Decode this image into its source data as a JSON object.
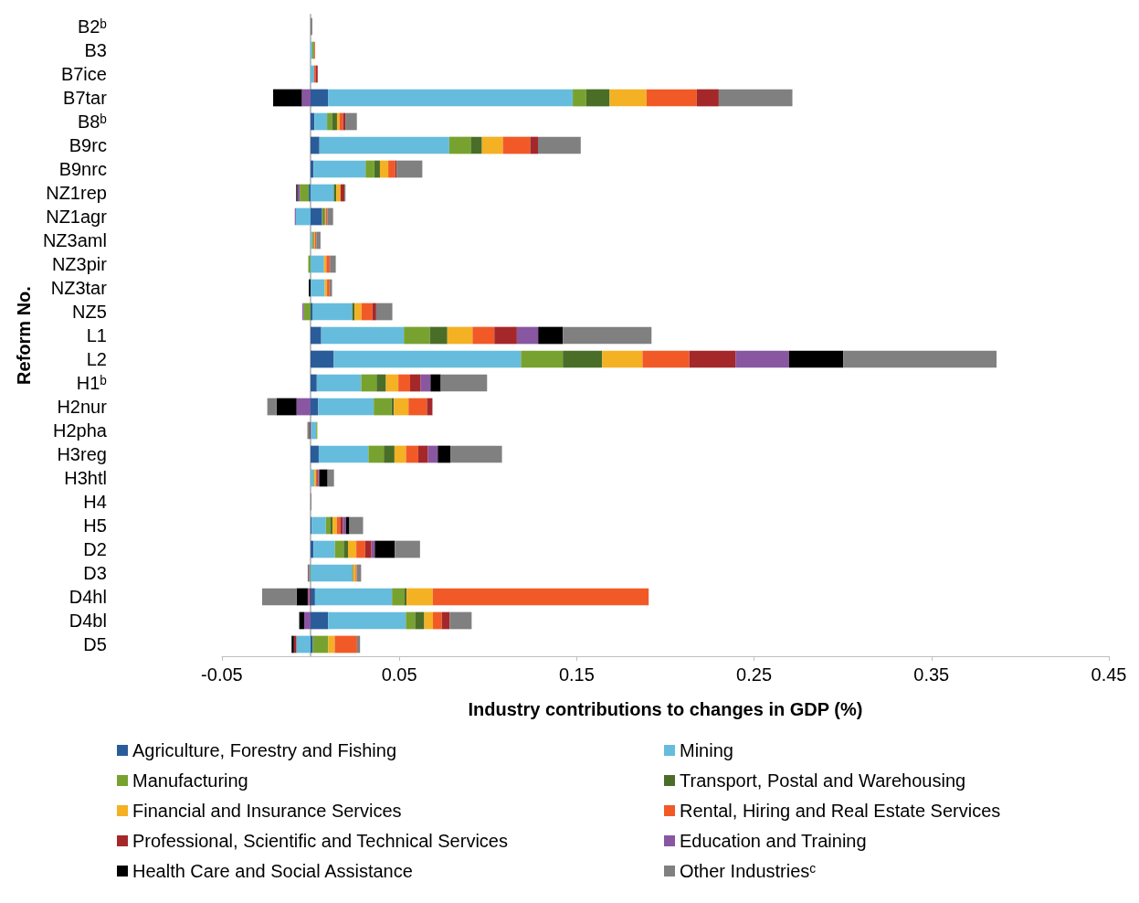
{
  "chart_data": {
    "type": "bar",
    "orientation": "horizontal",
    "stacked": true,
    "xlabel": "Industry contributions to changes in GDP (%)",
    "ylabel": "Reform No.",
    "categories": [
      "B2ᵇ",
      "B3",
      "B7ice",
      "B7tar",
      "B8ᵇ",
      "B9rc",
      "B9nrc",
      "NZ1rep",
      "NZ1agr",
      "NZ3aml",
      "NZ3pir",
      "NZ3tar",
      "NZ5",
      "L1",
      "L2",
      "H1ᵇ",
      "H2nur",
      "H2pha",
      "H3reg",
      "H3htl",
      "H4",
      "H5",
      "D2",
      "D3",
      "D4hl",
      "D4bl",
      "D5"
    ],
    "xlim": [
      -0.05,
      0.45
    ],
    "xticks": [
      -0.05,
      0.05,
      0.15,
      0.25,
      0.35,
      0.45
    ],
    "grid": false,
    "legend": "bottom",
    "series": [
      {
        "name": "Agriculture, Forestry and Fishing",
        "color": "#2a5c9a",
        "values": [
          null,
          null,
          null,
          0.0098,
          0.0022,
          0.005,
          0.0017,
          -0.001,
          0.0065,
          null,
          null,
          null,
          0.0013,
          0.006,
          0.0131,
          0.0035,
          0.0043,
          null,
          0.0046,
          null,
          null,
          0.0006,
          0.0017,
          null,
          0.0025,
          0.0099,
          0.0013
        ]
      },
      {
        "name": "Mining",
        "color": "#66bcdc",
        "values": [
          null,
          0.001,
          0.002,
          0.138,
          0.0071,
          0.0732,
          0.0293,
          0.0131,
          -0.0083,
          0.0008,
          0.0076,
          0.008,
          0.0222,
          0.0466,
          0.1055,
          0.025,
          0.0313,
          0.0032,
          0.028,
          0.0017,
          null,
          0.008,
          0.012,
          0.0235,
          0.0434,
          0.0438,
          -0.008
        ]
      },
      {
        "name": "Manufacturing",
        "color": "#78a22f",
        "values": [
          null,
          0.001,
          null,
          0.0076,
          0.0028,
          0.0121,
          0.0049,
          -0.0051,
          0.0008,
          0.0006,
          -0.0013,
          null,
          -0.0038,
          0.0146,
          0.0236,
          0.0087,
          0.01,
          0.0006,
          0.0087,
          0.0006,
          null,
          0.0024,
          0.005,
          -0.0008,
          0.0068,
          0.0052,
          0.0087
        ]
      },
      {
        "name": "Transport, Postal and Warehousing",
        "color": "#4a6e27",
        "values": [
          null,
          null,
          null,
          0.0132,
          0.0028,
          0.0063,
          0.0032,
          0.0014,
          0.0008,
          0.0005,
          null,
          null,
          0.0014,
          0.0099,
          0.0222,
          0.0053,
          0.0014,
          null,
          0.006,
          null,
          null,
          0.0014,
          0.0024,
          0.0005,
          0.0014,
          0.0052,
          null
        ]
      },
      {
        "name": "Financial and Insurance Services",
        "color": "#f4b124",
        "values": [
          null,
          null,
          null,
          0.0208,
          0.0014,
          0.0118,
          0.0047,
          0.0024,
          0.0005,
          0.0005,
          0.0013,
          0.0013,
          0.0038,
          0.0142,
          0.0227,
          0.007,
          0.0082,
          null,
          0.0065,
          0.0008,
          null,
          0.0024,
          0.0047,
          0.0014,
          0.0148,
          0.0049,
          0.0036
        ]
      },
      {
        "name": "Rental, Hiring and Real Estate Services",
        "color": "#f15a27",
        "values": [
          null,
          0.0005,
          0.001,
          0.0283,
          0.002,
          0.0154,
          0.0039,
          null,
          0.0008,
          0.0008,
          0.0017,
          0.0014,
          0.0061,
          0.0123,
          0.0264,
          0.0066,
          0.0104,
          null,
          0.0069,
          0.0006,
          null,
          0.0019,
          0.005,
          0.0006,
          0.1217,
          0.005,
          0.0126
        ]
      },
      {
        "name": "Professional, Scientific and Technical Services",
        "color": "#a4282a",
        "values": [
          null,
          null,
          0.001,
          0.0124,
          0.0013,
          0.0044,
          0.0008,
          0.0022,
          null,
          null,
          0.0005,
          null,
          0.0022,
          0.0127,
          0.026,
          0.006,
          0.0031,
          -0.0005,
          0.0055,
          0.0006,
          null,
          0.0016,
          0.0035,
          null,
          -0.0008,
          0.0044,
          -0.0014
        ]
      },
      {
        "name": "Education and Training",
        "color": "#8957a1",
        "values": [
          null,
          null,
          null,
          -0.0049,
          null,
          null,
          null,
          -0.0013,
          -0.0006,
          null,
          null,
          null,
          -0.0008,
          0.012,
          0.0302,
          0.0055,
          -0.0079,
          null,
          0.0055,
          0.0006,
          null,
          0.0016,
          0.0019,
          -0.0008,
          -0.0008,
          -0.0036,
          null
        ]
      },
      {
        "name": "Health Care and Social Assistance",
        "color": "#000000",
        "values": [
          null,
          null,
          null,
          -0.0162,
          null,
          null,
          null,
          -0.0007,
          null,
          null,
          null,
          -0.001,
          null,
          0.0139,
          0.0306,
          0.0058,
          -0.0113,
          null,
          0.0071,
          0.0047,
          null,
          0.002,
          0.0113,
          null,
          -0.0063,
          -0.0028,
          -0.0013
        ]
      },
      {
        "name": "Other Industriesᶜ",
        "color": "#808080",
        "values": [
          0.001,
          null,
          null,
          0.0415,
          0.0065,
          0.0241,
          0.0145,
          0.0006,
          0.0033,
          0.0024,
          0.0031,
          0.0014,
          0.0091,
          0.05,
          0.0864,
          0.0261,
          -0.0052,
          -0.0013,
          0.0291,
          0.0036,
          0.0005,
          0.0077,
          0.0142,
          0.0025,
          -0.0194,
          0.0124,
          0.0017
        ]
      }
    ]
  }
}
